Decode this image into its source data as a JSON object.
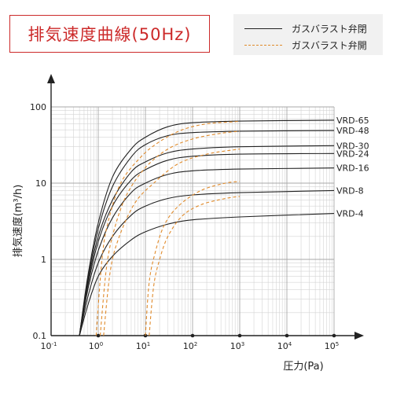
{
  "title": "排気速度曲線(50Hz)",
  "legend": {
    "solid_label": "ガスバラスト弁閉",
    "dashed_label": "ガスバラスト弁開",
    "solid_color": "#222222",
    "dashed_color": "#e08a2a"
  },
  "chart_data": {
    "type": "line",
    "xscale": "log",
    "yscale": "log",
    "xlim": [
      0.1,
      100000
    ],
    "ylim": [
      0.1,
      100
    ],
    "xlabel": "圧力(Pa)",
    "ylabel": "排気速度(m³/h)",
    "x_ticks": [
      {
        "value": 0.1,
        "base": "10",
        "exp": "-1"
      },
      {
        "value": 1,
        "base": "10",
        "exp": "0"
      },
      {
        "value": 10,
        "base": "10",
        "exp": "1"
      },
      {
        "value": 100,
        "base": "10",
        "exp": "2"
      },
      {
        "value": 1000,
        "base": "10",
        "exp": "3"
      },
      {
        "value": 10000,
        "base": "10",
        "exp": "4"
      },
      {
        "value": 100000,
        "base": "10",
        "exp": "5"
      }
    ],
    "y_ticks": [
      {
        "value": 0.1,
        "label": "0.1"
      },
      {
        "value": 1,
        "label": "1"
      },
      {
        "value": 10,
        "label": "10"
      },
      {
        "value": 100,
        "label": "100"
      }
    ],
    "grid": true,
    "series": [
      {
        "name": "VRD-65",
        "style": "solid",
        "points": [
          [
            0.4,
            0.1
          ],
          [
            0.6,
            0.6
          ],
          [
            1,
            3
          ],
          [
            2,
            12
          ],
          [
            5,
            28
          ],
          [
            10,
            40
          ],
          [
            30,
            55
          ],
          [
            100,
            62
          ],
          [
            1000,
            65
          ],
          [
            100000,
            67
          ]
        ]
      },
      {
        "name": "VRD-48",
        "style": "solid",
        "points": [
          [
            0.4,
            0.1
          ],
          [
            0.6,
            0.55
          ],
          [
            1,
            2.5
          ],
          [
            2,
            9
          ],
          [
            5,
            22
          ],
          [
            10,
            32
          ],
          [
            30,
            42
          ],
          [
            100,
            46
          ],
          [
            1000,
            48
          ],
          [
            100000,
            49
          ]
        ]
      },
      {
        "name": "VRD-30",
        "style": "solid",
        "points": [
          [
            0.4,
            0.1
          ],
          [
            0.6,
            0.5
          ],
          [
            1,
            2
          ],
          [
            2,
            6
          ],
          [
            5,
            14
          ],
          [
            10,
            19
          ],
          [
            30,
            25
          ],
          [
            100,
            28
          ],
          [
            1000,
            30
          ],
          [
            100000,
            31
          ]
        ]
      },
      {
        "name": "VRD-24",
        "style": "solid",
        "points": [
          [
            0.4,
            0.1
          ],
          [
            0.6,
            0.45
          ],
          [
            1,
            1.7
          ],
          [
            2,
            5
          ],
          [
            5,
            11
          ],
          [
            10,
            15
          ],
          [
            30,
            20
          ],
          [
            100,
            22.5
          ],
          [
            1000,
            24
          ],
          [
            100000,
            24.5
          ]
        ]
      },
      {
        "name": "VRD-16",
        "style": "solid",
        "points": [
          [
            0.4,
            0.1
          ],
          [
            0.6,
            0.4
          ],
          [
            1,
            1.3
          ],
          [
            2,
            3.5
          ],
          [
            5,
            7.5
          ],
          [
            10,
            10
          ],
          [
            30,
            13
          ],
          [
            100,
            14.5
          ],
          [
            1000,
            15.3
          ],
          [
            100000,
            15.8
          ]
        ]
      },
      {
        "name": "VRD-8",
        "style": "solid",
        "points": [
          [
            0.4,
            0.1
          ],
          [
            0.6,
            0.32
          ],
          [
            1,
            0.9
          ],
          [
            2,
            2
          ],
          [
            5,
            3.8
          ],
          [
            10,
            5
          ],
          [
            30,
            6.3
          ],
          [
            100,
            7
          ],
          [
            1000,
            7.5
          ],
          [
            100000,
            8
          ]
        ]
      },
      {
        "name": "VRD-4",
        "style": "solid",
        "points": [
          [
            0.4,
            0.1
          ],
          [
            0.6,
            0.25
          ],
          [
            1,
            0.6
          ],
          [
            2,
            1.1
          ],
          [
            5,
            1.8
          ],
          [
            10,
            2.3
          ],
          [
            30,
            2.9
          ],
          [
            100,
            3.3
          ],
          [
            1000,
            3.6
          ],
          [
            100000,
            4
          ]
        ]
      },
      {
        "style": "dashed",
        "points": [
          [
            0.9,
            0.1
          ],
          [
            1.2,
            1
          ],
          [
            1.6,
            3
          ],
          [
            3,
            10
          ],
          [
            8,
            22
          ],
          [
            20,
            35
          ],
          [
            60,
            50
          ],
          [
            200,
            60
          ],
          [
            800,
            64
          ],
          [
            1000,
            65
          ]
        ]
      },
      {
        "style": "dashed",
        "points": [
          [
            1.1,
            0.1
          ],
          [
            1.5,
            0.8
          ],
          [
            2.2,
            2.5
          ],
          [
            4,
            7
          ],
          [
            10,
            16
          ],
          [
            30,
            28
          ],
          [
            100,
            38
          ],
          [
            400,
            45
          ],
          [
            1000,
            48
          ]
        ]
      },
      {
        "style": "dashed",
        "points": [
          [
            1.3,
            0.1
          ],
          [
            1.8,
            0.7
          ],
          [
            2.8,
            2
          ],
          [
            6,
            5.5
          ],
          [
            15,
            10
          ],
          [
            50,
            18
          ],
          [
            200,
            24
          ],
          [
            1000,
            28
          ]
        ]
      },
      {
        "style": "dashed",
        "points": [
          [
            10,
            0.1
          ],
          [
            12,
            0.5
          ],
          [
            16,
            1.2
          ],
          [
            25,
            2.8
          ],
          [
            50,
            5
          ],
          [
            150,
            8
          ],
          [
            500,
            10
          ],
          [
            1000,
            10.5
          ]
        ]
      },
      {
        "style": "dashed",
        "points": [
          [
            12,
            0.1
          ],
          [
            15,
            0.45
          ],
          [
            20,
            1
          ],
          [
            30,
            2
          ],
          [
            60,
            3.7
          ],
          [
            150,
            5.2
          ],
          [
            500,
            6.3
          ],
          [
            1000,
            6.7
          ]
        ]
      }
    ]
  }
}
